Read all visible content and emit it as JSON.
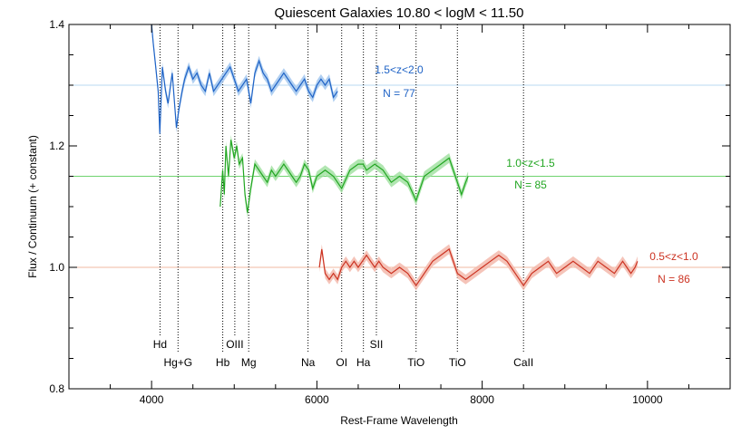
{
  "chart_data": {
    "type": "line",
    "title": "Quiescent Galaxies   10.80 < logM < 11.50",
    "xlabel": "Rest-Frame Wavelength",
    "ylabel": "Flux / Continuum  (+ constant)",
    "xlim": [
      3000,
      11000
    ],
    "ylim": [
      0.8,
      1.4
    ],
    "xticks": [
      4000,
      6000,
      8000,
      10000
    ],
    "yticks": [
      0.8,
      1.0,
      1.2,
      1.4
    ],
    "xtick_labels": [
      "4000",
      "6000",
      "8000",
      "10000"
    ],
    "ytick_labels": [
      "0.8",
      "1.0",
      "1.2",
      "1.4"
    ],
    "grid": false,
    "series": [
      {
        "name": "1.5<z<2.0",
        "label_top": "1.5<z<2.0",
        "label_bottom": "N = 77",
        "color": "#1f63c6",
        "band_color": "#9cc3ee",
        "baseline": 1.3,
        "baseline_color": "#b8d8f0",
        "x": [
          4000,
          4020,
          4050,
          4080,
          4100,
          4130,
          4170,
          4200,
          4250,
          4300,
          4330,
          4370,
          4400,
          4450,
          4500,
          4550,
          4600,
          4650,
          4700,
          4750,
          4800,
          4850,
          4900,
          4950,
          5000,
          5050,
          5100,
          5150,
          5200,
          5250,
          5300,
          5350,
          5400,
          5450,
          5500,
          5550,
          5600,
          5650,
          5700,
          5750,
          5800,
          5850,
          5900,
          5950,
          6000,
          6050,
          6100,
          6150,
          6200,
          6250
        ],
        "y": [
          1.4,
          1.37,
          1.33,
          1.29,
          1.22,
          1.33,
          1.29,
          1.27,
          1.32,
          1.23,
          1.26,
          1.29,
          1.31,
          1.33,
          1.31,
          1.32,
          1.3,
          1.29,
          1.32,
          1.29,
          1.3,
          1.31,
          1.32,
          1.33,
          1.31,
          1.29,
          1.3,
          1.31,
          1.27,
          1.32,
          1.34,
          1.32,
          1.31,
          1.29,
          1.3,
          1.31,
          1.32,
          1.31,
          1.3,
          1.29,
          1.3,
          1.31,
          1.29,
          1.28,
          1.3,
          1.31,
          1.3,
          1.31,
          1.28,
          1.29
        ]
      },
      {
        "name": "1.0<z<1.5",
        "label_top": "1.0<z<1.5",
        "label_bottom": "N = 85",
        "color": "#22a622",
        "band_color": "#9ee09e",
        "baseline": 1.15,
        "baseline_color": "#6fd36f",
        "x": [
          4830,
          4860,
          4880,
          4900,
          4930,
          4960,
          5000,
          5030,
          5060,
          5100,
          5130,
          5160,
          5200,
          5250,
          5300,
          5350,
          5400,
          5450,
          5500,
          5550,
          5600,
          5650,
          5700,
          5750,
          5800,
          5850,
          5900,
          5950,
          6000,
          6100,
          6200,
          6300,
          6400,
          6500,
          6560,
          6600,
          6700,
          6800,
          6900,
          7000,
          7100,
          7200,
          7300,
          7400,
          7500,
          7600,
          7700,
          7750,
          7800,
          7830
        ],
        "y": [
          1.1,
          1.16,
          1.12,
          1.2,
          1.15,
          1.21,
          1.18,
          1.2,
          1.17,
          1.18,
          1.12,
          1.09,
          1.13,
          1.17,
          1.16,
          1.15,
          1.14,
          1.16,
          1.15,
          1.16,
          1.17,
          1.16,
          1.15,
          1.14,
          1.15,
          1.17,
          1.16,
          1.13,
          1.15,
          1.16,
          1.15,
          1.13,
          1.16,
          1.17,
          1.17,
          1.16,
          1.17,
          1.16,
          1.14,
          1.15,
          1.14,
          1.11,
          1.15,
          1.16,
          1.17,
          1.18,
          1.14,
          1.12,
          1.14,
          1.15
        ]
      },
      {
        "name": "0.5<z<1.0",
        "label_top": "0.5<z<1.0",
        "label_bottom": "N = 86",
        "color": "#cc3322",
        "band_color": "#f3b5a8",
        "baseline": 1.0,
        "baseline_color": "#f2b9a0",
        "x": [
          6030,
          6060,
          6100,
          6150,
          6200,
          6250,
          6300,
          6350,
          6400,
          6450,
          6500,
          6550,
          6600,
          6650,
          6700,
          6750,
          6800,
          6900,
          7000,
          7100,
          7200,
          7300,
          7400,
          7500,
          7600,
          7700,
          7800,
          7900,
          8000,
          8100,
          8200,
          8300,
          8400,
          8500,
          8600,
          8700,
          8800,
          8900,
          9000,
          9100,
          9200,
          9300,
          9400,
          9500,
          9600,
          9700,
          9750,
          9800,
          9850,
          9880
        ],
        "y": [
          1.0,
          1.03,
          0.99,
          0.98,
          0.99,
          0.98,
          1.0,
          1.01,
          1.0,
          1.01,
          1.0,
          1.01,
          1.02,
          1.01,
          1.0,
          1.01,
          1.0,
          0.99,
          1.0,
          0.99,
          0.97,
          0.99,
          1.01,
          1.02,
          1.03,
          0.99,
          0.98,
          0.99,
          1.0,
          1.01,
          1.02,
          1.01,
          0.99,
          0.97,
          0.99,
          1.0,
          1.01,
          0.99,
          1.0,
          1.01,
          1.0,
          0.99,
          1.01,
          1.0,
          0.99,
          1.01,
          1.0,
          0.99,
          1.0,
          1.01
        ]
      }
    ],
    "lines": [
      {
        "label": "Hd",
        "x": 4102,
        "row": 1
      },
      {
        "label": "Hg+G",
        "x": 4320,
        "row": 2
      },
      {
        "label": "Hb",
        "x": 4861,
        "row": 2
      },
      {
        "label": "OIII",
        "x": 5007,
        "row": 1
      },
      {
        "label": "Mg",
        "x": 5175,
        "row": 2
      },
      {
        "label": "Na",
        "x": 5893,
        "row": 2
      },
      {
        "label": "OI",
        "x": 6300,
        "row": 2
      },
      {
        "label": "Ha",
        "x": 6563,
        "row": 2
      },
      {
        "label": "SII",
        "x": 6720,
        "row": 1
      },
      {
        "label": "TiO",
        "x": 7200,
        "row": 2
      },
      {
        "label": "TiO",
        "x": 7700,
        "row": 2
      },
      {
        "label": "CaII",
        "x": 8500,
        "row": 2
      }
    ]
  }
}
